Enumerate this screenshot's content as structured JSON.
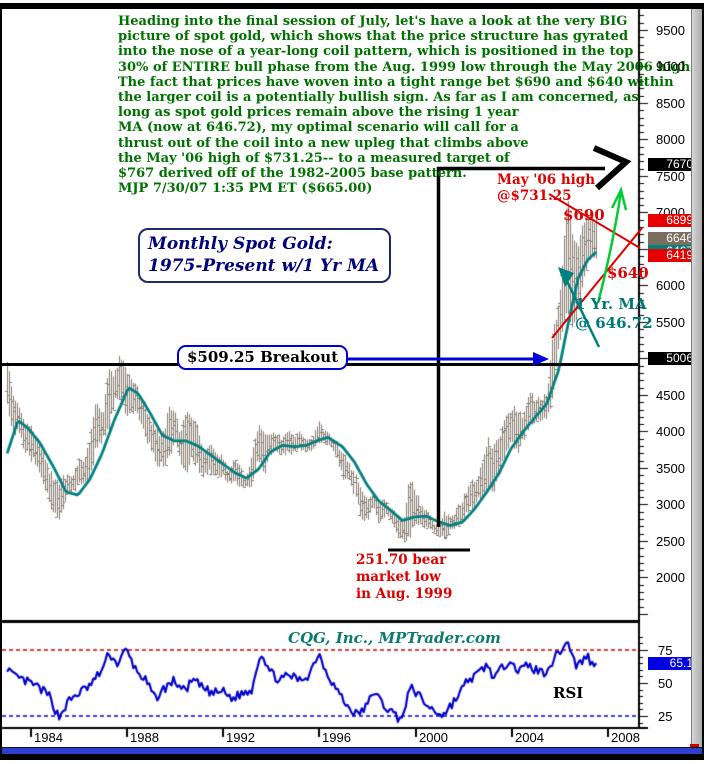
{
  "window": {
    "accent_blue": "#2b3fd0",
    "frame_color": "#000000"
  },
  "commentary": {
    "color": "#007000",
    "text": "Heading into the final session of July, let's have a look at the very BIG\npicture of spot gold, which shows that the price structure has gyrated\ninto the nose of a year-long coil pattern, which is positioned in the top\n30% of ENTIRE bull phase from the Aug. 1999 low through the May 2006 high.\nThe fact that prices have woven into a tight range bet $690 and $640 within\nthe larger coil is a potentially bullish sign. As far as I am concerned, as\nlong as spot gold prices remain above the rising 1 year\nMA (now at 646.72), my optimal scenario will call for a\nthrust out of the coil into a new upleg that climbs above\nthe May '06 high of $731.25-- to a measured target of\n$767 derived off of the 1982-2005 base pattern.\nMJP 7/30/07  1:35 PM ET ($665.00)"
  },
  "title_box": {
    "text": "Monthly Spot Gold:\n1975-Present w/1 Yr MA"
  },
  "annotations": {
    "breakout": "$509.25 Breakout",
    "may06_high": "May '06 high\n@$731.25",
    "level_690": "$690",
    "level_640": "$640",
    "bear_low": "251.70 bear\nmarket low\nin Aug. 1999",
    "ma_label": "1 Yr. MA\n@ 646.72",
    "credit": "CQG, Inc., MPTrader.com",
    "rsi_label": "RSI"
  },
  "chart_data": {
    "type": "ohlc",
    "title": "Monthly Spot Gold 1975-Present w/1 Yr MA",
    "note": "prices shown in tenths of dollars (6650 = $665.00)",
    "x_axis": {
      "tick_years": [
        1984,
        1988,
        1992,
        1996,
        2000,
        2004,
        2008
      ],
      "visible_range": [
        1983.0,
        2008.2
      ]
    },
    "price_axis": {
      "tick_labels": [
        9500,
        9000,
        8500,
        8000,
        7500,
        7000,
        6000,
        5500,
        4500,
        4000,
        3500,
        3000,
        2500,
        2000
      ],
      "minor_step": 100,
      "major_step": 500,
      "range_top": 9750,
      "range_bottom": 1450,
      "highlights": [
        {
          "value": 7670,
          "text": "7670",
          "bg": "#000000",
          "meaning": "measured target $767"
        },
        {
          "value": 6899,
          "text": "6899",
          "bg": "#e60000",
          "meaning": "current bar high"
        },
        {
          "value": 6646,
          "text": "6646",
          "bg": "#7b6e5e",
          "meaning": "last price"
        },
        {
          "value": 6467,
          "text": "6467",
          "bg": "#008080",
          "meaning": "1 yr MA value"
        },
        {
          "value": 6419,
          "text": "6419",
          "bg": "#e60000",
          "meaning": "current bar low"
        },
        {
          "value": 5006,
          "text": "5006",
          "bg": "#000000",
          "meaning": "breakout line level"
        }
      ]
    },
    "bar_color": "#867a6e",
    "ma_color": "#008080",
    "price_keyframes_qtr_t_high_low": [
      [
        1983.0,
        5110,
        4400
      ],
      [
        1983.25,
        4480,
        4000
      ],
      [
        1983.5,
        4320,
        4000
      ],
      [
        1983.75,
        4100,
        3740
      ],
      [
        1984.0,
        4060,
        3650
      ],
      [
        1984.25,
        3900,
        3550
      ],
      [
        1984.5,
        3700,
        3330
      ],
      [
        1984.75,
        3500,
        3080
      ],
      [
        1985.0,
        3300,
        2840
      ],
      [
        1985.25,
        3320,
        2850
      ],
      [
        1985.5,
        3400,
        3080
      ],
      [
        1985.75,
        3400,
        3180
      ],
      [
        1986.0,
        3600,
        3260
      ],
      [
        1986.25,
        3550,
        3300
      ],
      [
        1986.5,
        3950,
        3350
      ],
      [
        1986.75,
        4420,
        3800
      ],
      [
        1987.0,
        4200,
        3900
      ],
      [
        1987.25,
        4800,
        4000
      ],
      [
        1987.5,
        4800,
        4400
      ],
      [
        1987.75,
        5020,
        4450
      ],
      [
        1988.0,
        4850,
        4250
      ],
      [
        1988.25,
        4700,
        4300
      ],
      [
        1988.5,
        4550,
        4200
      ],
      [
        1988.75,
        4350,
        3950
      ],
      [
        1989.0,
        4150,
        3800
      ],
      [
        1989.25,
        4000,
        3550
      ],
      [
        1989.5,
        3900,
        3550
      ],
      [
        1989.75,
        4300,
        3600
      ],
      [
        1990.0,
        4250,
        3900
      ],
      [
        1990.25,
        4000,
        3600
      ],
      [
        1990.5,
        4250,
        3450
      ],
      [
        1990.75,
        4150,
        3650
      ],
      [
        1991.0,
        4030,
        3500
      ],
      [
        1991.25,
        3700,
        3400
      ],
      [
        1991.5,
        3800,
        3430
      ],
      [
        1991.75,
        3700,
        3430
      ],
      [
        1992.0,
        3650,
        3400
      ],
      [
        1992.25,
        3450,
        3300
      ],
      [
        1992.5,
        3600,
        3300
      ],
      [
        1992.75,
        3500,
        3260
      ],
      [
        1993.0,
        3350,
        3230
      ],
      [
        1993.25,
        3700,
        3260
      ],
      [
        1993.5,
        4090,
        3650
      ],
      [
        1993.75,
        4000,
        3430
      ],
      [
        1994.0,
        4000,
        3700
      ],
      [
        1994.25,
        3950,
        3700
      ],
      [
        1994.5,
        3900,
        3700
      ],
      [
        1994.75,
        4000,
        3700
      ],
      [
        1995.0,
        3900,
        3720
      ],
      [
        1995.25,
        4000,
        3750
      ],
      [
        1995.5,
        3900,
        3740
      ],
      [
        1995.75,
        3900,
        3720
      ],
      [
        1996.0,
        4150,
        3860
      ],
      [
        1996.25,
        4000,
        3850
      ],
      [
        1996.5,
        3950,
        3800
      ],
      [
        1996.75,
        3850,
        3670
      ],
      [
        1997.0,
        3700,
        3380
      ],
      [
        1997.25,
        3600,
        3350
      ],
      [
        1997.5,
        3400,
        3140
      ],
      [
        1997.75,
        3250,
        2830
      ],
      [
        1998.0,
        3050,
        2770
      ],
      [
        1998.25,
        3150,
        2950
      ],
      [
        1998.5,
        3000,
        2730
      ],
      [
        1998.75,
        3050,
        2870
      ],
      [
        1999.0,
        2950,
        2780
      ],
      [
        1999.25,
        2900,
        2590
      ],
      [
        1999.5,
        2700,
        2517
      ],
      [
        1999.75,
        3380,
        2550
      ],
      [
        2000.0,
        3200,
        2800
      ],
      [
        2000.25,
        2950,
        2700
      ],
      [
        2000.5,
        2900,
        2680
      ],
      [
        2000.75,
        2750,
        2630
      ],
      [
        2001.0,
        2700,
        2550
      ],
      [
        2001.25,
        2900,
        2550
      ],
      [
        2001.5,
        2800,
        2650
      ],
      [
        2001.75,
        2960,
        2700
      ],
      [
        2002.0,
        3100,
        2770
      ],
      [
        2002.25,
        3300,
        2950
      ],
      [
        2002.5,
        3300,
        3000
      ],
      [
        2002.75,
        3500,
        3100
      ],
      [
        2003.0,
        3900,
        3200
      ],
      [
        2003.25,
        3750,
        3190
      ],
      [
        2003.5,
        3940,
        3420
      ],
      [
        2003.75,
        4170,
        3700
      ],
      [
        2004.0,
        4320,
        3900
      ],
      [
        2004.25,
        4330,
        3710
      ],
      [
        2004.5,
        4200,
        3870
      ],
      [
        2004.75,
        4560,
        4110
      ],
      [
        2005.0,
        4450,
        4110
      ],
      [
        2005.25,
        4420,
        4140
      ],
      [
        2005.5,
        4560,
        4170
      ],
      [
        2005.75,
        5410,
        4560
      ],
      [
        2006.0,
        5750,
        5240
      ],
      [
        2006.17,
        6400,
        5450
      ],
      [
        2006.33,
        7310,
        5670
      ],
      [
        2006.5,
        6760,
        5420
      ],
      [
        2006.75,
        6500,
        5590
      ],
      [
        2007.0,
        6890,
        6020
      ],
      [
        2007.25,
        6950,
        6400
      ],
      [
        2007.5,
        6890,
        6390
      ],
      [
        2007.58,
        6840,
        6420
      ]
    ],
    "ma_keyframes_t_value": [
      [
        1983.05,
        3700
      ],
      [
        1983.5,
        4150
      ],
      [
        1983.9,
        4050
      ],
      [
        1984.4,
        3850
      ],
      [
        1985.0,
        3500
      ],
      [
        1985.5,
        3170
      ],
      [
        1986.0,
        3130
      ],
      [
        1986.5,
        3350
      ],
      [
        1987.0,
        3700
      ],
      [
        1987.5,
        4150
      ],
      [
        1988.1,
        4600
      ],
      [
        1988.5,
        4520
      ],
      [
        1989.0,
        4250
      ],
      [
        1989.5,
        3950
      ],
      [
        1990.0,
        3870
      ],
      [
        1990.5,
        3870
      ],
      [
        1991.0,
        3800
      ],
      [
        1991.5,
        3680
      ],
      [
        1992.0,
        3560
      ],
      [
        1992.5,
        3440
      ],
      [
        1993.0,
        3360
      ],
      [
        1993.5,
        3480
      ],
      [
        1994.0,
        3720
      ],
      [
        1994.5,
        3810
      ],
      [
        1995.0,
        3790
      ],
      [
        1995.5,
        3810
      ],
      [
        1996.0,
        3880
      ],
      [
        1996.4,
        3920
      ],
      [
        1997.0,
        3790
      ],
      [
        1997.5,
        3580
      ],
      [
        1998.0,
        3280
      ],
      [
        1998.5,
        3050
      ],
      [
        1999.0,
        2920
      ],
      [
        1999.5,
        2780
      ],
      [
        2000.0,
        2830
      ],
      [
        2000.5,
        2840
      ],
      [
        2001.0,
        2760
      ],
      [
        2001.5,
        2710
      ],
      [
        2002.0,
        2760
      ],
      [
        2002.5,
        2940
      ],
      [
        2003.0,
        3170
      ],
      [
        2003.5,
        3420
      ],
      [
        2004.0,
        3760
      ],
      [
        2004.5,
        3990
      ],
      [
        2005.0,
        4190
      ],
      [
        2005.5,
        4380
      ],
      [
        2006.0,
        4850
      ],
      [
        2006.4,
        5500
      ],
      [
        2006.8,
        6100
      ],
      [
        2007.2,
        6350
      ],
      [
        2007.58,
        6467
      ]
    ],
    "rsi": {
      "type": "line",
      "line_color": "#0000cc",
      "overbought": 75,
      "oversold": 25,
      "axis_labels": [
        75,
        50,
        25
      ],
      "current_value": "65.1",
      "current_bg": "#0000e0",
      "keyframes_t_value": [
        [
          1983.05,
          62
        ],
        [
          1983.3,
          55
        ],
        [
          1983.7,
          52
        ],
        [
          1984.0,
          50
        ],
        [
          1984.4,
          46
        ],
        [
          1984.8,
          40
        ],
        [
          1985.2,
          24
        ],
        [
          1985.6,
          36
        ],
        [
          1986.0,
          42
        ],
        [
          1986.5,
          48
        ],
        [
          1987.0,
          60
        ],
        [
          1987.3,
          73
        ],
        [
          1987.6,
          64
        ],
        [
          1988.0,
          75
        ],
        [
          1988.4,
          60
        ],
        [
          1988.8,
          52
        ],
        [
          1989.2,
          38
        ],
        [
          1989.6,
          46
        ],
        [
          1990.0,
          52
        ],
        [
          1990.4,
          44
        ],
        [
          1990.8,
          52
        ],
        [
          1991.2,
          46
        ],
        [
          1991.6,
          42
        ],
        [
          1992.0,
          44
        ],
        [
          1992.4,
          38
        ],
        [
          1992.8,
          42
        ],
        [
          1993.2,
          44
        ],
        [
          1993.6,
          74
        ],
        [
          1994.0,
          58
        ],
        [
          1994.4,
          52
        ],
        [
          1994.8,
          56
        ],
        [
          1995.2,
          52
        ],
        [
          1995.6,
          56
        ],
        [
          1996.0,
          73
        ],
        [
          1996.4,
          56
        ],
        [
          1996.8,
          44
        ],
        [
          1997.2,
          32
        ],
        [
          1997.6,
          26
        ],
        [
          1998.0,
          32
        ],
        [
          1998.3,
          44
        ],
        [
          1998.7,
          33
        ],
        [
          1999.0,
          29
        ],
        [
          1999.3,
          24
        ],
        [
          1999.6,
          27
        ],
        [
          1999.8,
          48
        ],
        [
          2000.1,
          42
        ],
        [
          2000.5,
          33
        ],
        [
          2000.9,
          28
        ],
        [
          2001.2,
          26
        ],
        [
          2001.5,
          33
        ],
        [
          2001.8,
          40
        ],
        [
          2002.2,
          52
        ],
        [
          2002.6,
          56
        ],
        [
          2003.0,
          64
        ],
        [
          2003.3,
          54
        ],
        [
          2003.7,
          62
        ],
        [
          2004.0,
          70
        ],
        [
          2004.3,
          58
        ],
        [
          2004.7,
          64
        ],
        [
          2005.0,
          60
        ],
        [
          2005.4,
          58
        ],
        [
          2005.8,
          68
        ],
        [
          2006.1,
          76
        ],
        [
          2006.4,
          81
        ],
        [
          2006.7,
          63
        ],
        [
          2007.0,
          67
        ],
        [
          2007.2,
          71
        ],
        [
          2007.4,
          63
        ],
        [
          2007.58,
          65.1
        ]
      ]
    }
  }
}
